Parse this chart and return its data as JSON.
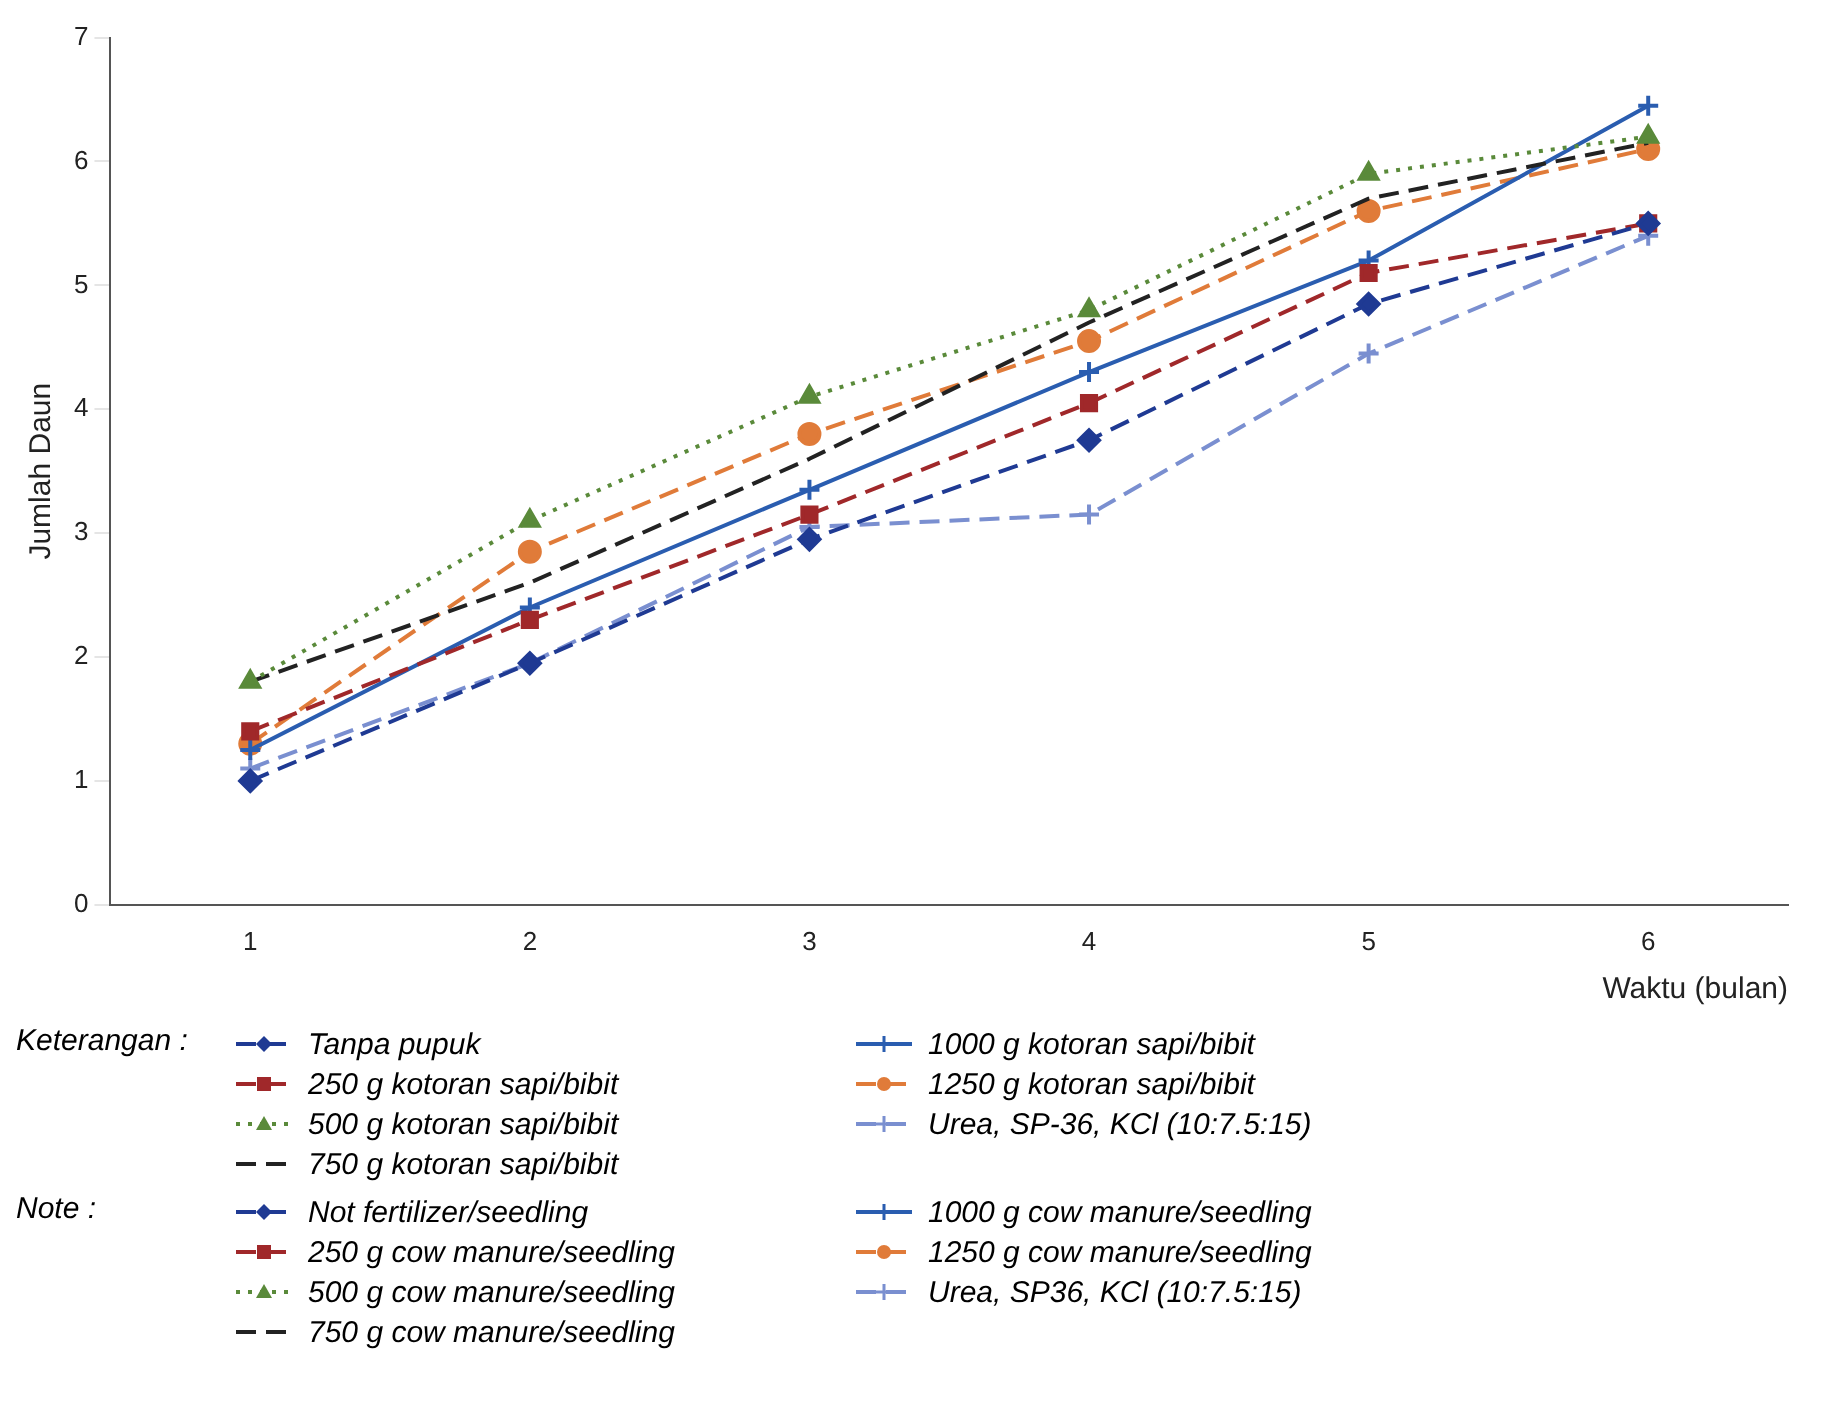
{
  "chart_data": {
    "type": "line",
    "xlabel": "Waktu (bulan)",
    "ylabel": "Jumlah Daun",
    "legend_title": "Keterangan :",
    "legend": "bottom",
    "categories": [
      "1",
      "2",
      "3",
      "4",
      "5",
      "6"
    ],
    "ylim": [
      0,
      7
    ],
    "yticks": [
      0,
      1,
      2,
      3,
      4,
      5,
      6,
      7
    ],
    "series": [
      {
        "name": "Tanpa pupuk",
        "color": "#1f3a93",
        "marker": "diamond",
        "line_style": "dashed",
        "values": [
          1.0,
          1.95,
          2.95,
          3.75,
          4.85,
          5.5
        ]
      },
      {
        "name": "250 g kotoran sapi/bibit",
        "color": "#a0282a",
        "marker": "square",
        "line_style": "dashed",
        "values": [
          1.4,
          2.3,
          3.15,
          4.05,
          5.1,
          5.5
        ]
      },
      {
        "name": "500 g kotoran sapi/bibit",
        "color": "#5a8a3a",
        "marker": "triangle",
        "line_style": "dotted",
        "values": [
          1.8,
          3.1,
          4.1,
          4.8,
          5.9,
          6.2
        ]
      },
      {
        "name": "750 g kotoran sapi/bibit",
        "color": "#222222",
        "marker": "none",
        "line_style": "dashed",
        "values": [
          1.8,
          2.6,
          3.6,
          4.7,
          5.7,
          6.15
        ]
      },
      {
        "name": "1000 g kotoran sapi/bibit",
        "color": "#2a5db0",
        "marker": "cross",
        "line_style": "solid",
        "values": [
          1.25,
          2.4,
          3.35,
          4.3,
          5.2,
          6.45
        ]
      },
      {
        "name": "1250 g kotoran sapi/bibit",
        "color": "#e07b39",
        "marker": "circle",
        "line_style": "dashed",
        "values": [
          1.3,
          2.85,
          3.8,
          4.55,
          5.6,
          6.1
        ]
      },
      {
        "name": "Urea, SP-36, KCl (10:7.5:15)",
        "color": "#7a8fd0",
        "marker": "cross",
        "line_style": "dashed",
        "values": [
          1.1,
          1.95,
          3.05,
          3.15,
          4.45,
          5.4
        ]
      }
    ],
    "annotations": [
      "Note :",
      "Not fertilizer/seedling",
      "250 g cow manure/seedling",
      "500 g cow manure/seedling",
      "750 g cow manure/seedling",
      "1000 g cow manure/seedling",
      "1250 g cow manure/seedling",
      "Urea, SP36, KCl (10:7.5:15)"
    ]
  }
}
